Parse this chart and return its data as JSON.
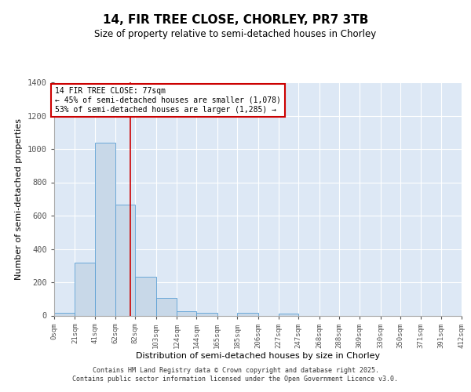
{
  "title": "14, FIR TREE CLOSE, CHORLEY, PR7 3TB",
  "subtitle": "Size of property relative to semi-detached houses in Chorley",
  "xlabel": "Distribution of semi-detached houses by size in Chorley",
  "ylabel": "Number of semi-detached properties",
  "bar_color": "#c8d8e8",
  "bar_edge_color": "#5a9fd4",
  "background_color": "#dde8f5",
  "grid_color": "#ffffff",
  "fig_background": "#ffffff",
  "bin_edges": [
    0,
    21,
    41,
    62,
    82,
    103,
    124,
    144,
    165,
    185,
    206,
    227,
    247,
    268,
    288,
    309,
    330,
    350,
    371,
    391,
    412
  ],
  "bar_heights": [
    15,
    320,
    1040,
    665,
    235,
    105,
    25,
    15,
    0,
    15,
    0,
    10,
    0,
    0,
    0,
    0,
    0,
    0,
    0,
    0
  ],
  "property_size": 77,
  "annotation_text": "14 FIR TREE CLOSE: 77sqm\n← 45% of semi-detached houses are smaller (1,078)\n53% of semi-detached houses are larger (1,285) →",
  "annotation_box_color": "#ffffff",
  "annotation_box_edge_color": "#cc0000",
  "red_line_color": "#cc0000",
  "ylim": [
    0,
    1400
  ],
  "yticks": [
    0,
    200,
    400,
    600,
    800,
    1000,
    1200,
    1400
  ],
  "footer_line1": "Contains HM Land Registry data © Crown copyright and database right 2025.",
  "footer_line2": "Contains public sector information licensed under the Open Government Licence v3.0."
}
